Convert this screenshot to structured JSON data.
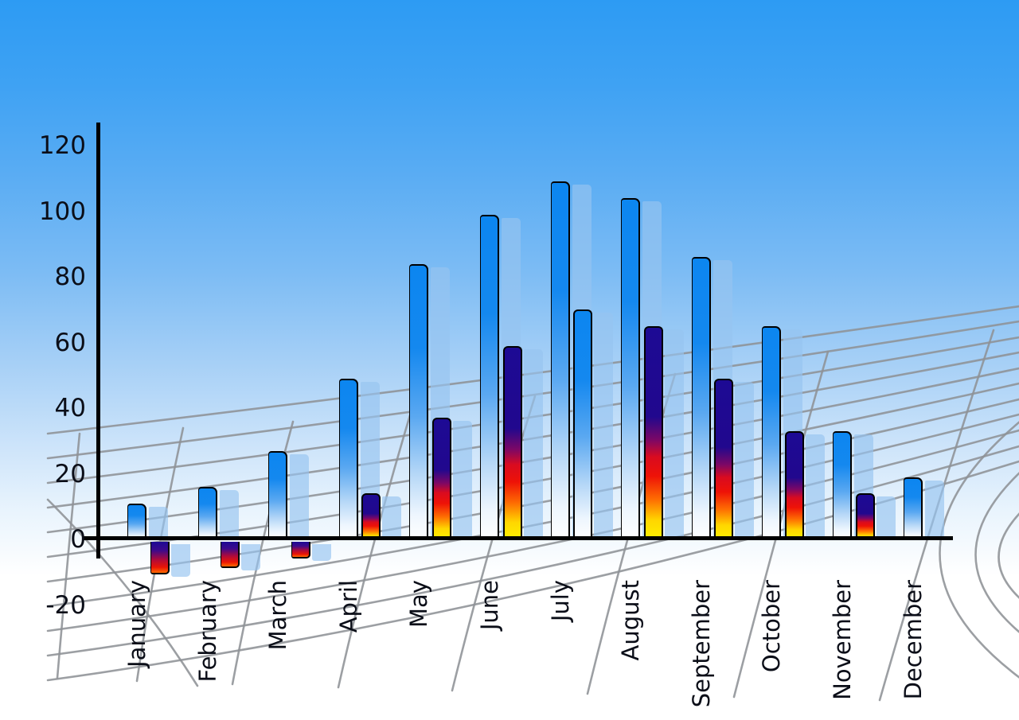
{
  "chart_data": {
    "type": "bar",
    "title": "",
    "xlabel": "",
    "ylabel": "",
    "categories": [
      "January",
      "February",
      "March",
      "April",
      "May",
      "June",
      "July",
      "August",
      "September",
      "October",
      "November",
      "December"
    ],
    "series": [
      {
        "name": "primary-blue-bars",
        "style": "blue-gradient",
        "values": [
          11,
          16,
          27,
          49,
          84,
          99,
          109,
          104,
          86,
          65,
          33,
          19
        ]
      },
      {
        "name": "secondary-rainbow-bars",
        "style": "rainbow-gradient",
        "values": [
          -10,
          -8,
          -5,
          14,
          37,
          59,
          70,
          65,
          49,
          33,
          14,
          null
        ],
        "bar_styles": [
          "rainbow",
          "rainbow",
          "rainbow",
          "rainbow",
          "rainbow",
          "rainbow",
          "blue",
          "rainbow",
          "rainbow",
          "rainbow",
          "rainbow",
          null
        ]
      }
    ],
    "y_ticks": [
      120,
      100,
      80,
      60,
      40,
      20,
      0,
      -20
    ],
    "ylim": [
      -20,
      120
    ],
    "legend_position": "none",
    "grid": "decorative-perspective-floor",
    "background": "sky-blue-gradient",
    "x_tick_label_rotation": -90,
    "notes": "each bar casts a translucent light-blue offset shadow; July secondary bar is blue-styled; December has no secondary bar"
  },
  "colors": {
    "sky_top": "#2d9bf3",
    "sky_bottom": "#ffffff",
    "bar_blue_top": "#0c86f0",
    "bar_blue_bottom": "#ffffff",
    "rainbow_navy": "#1d0a94",
    "rainbow_red": "#ee1207",
    "rainbow_yellow": "#ffe800",
    "bar_shadow": "rgba(151,196,240,0.66)",
    "grid_line": "#8e9296",
    "axis": "#000000",
    "label_text": "#0b0e18"
  }
}
